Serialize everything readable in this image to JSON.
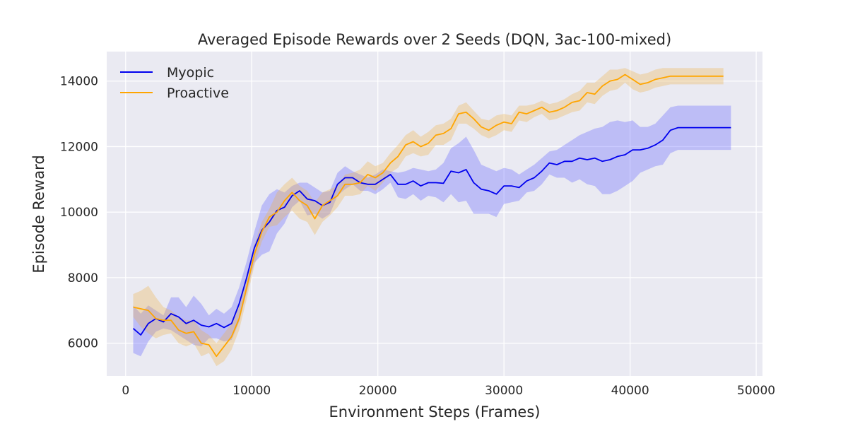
{
  "chart_data": {
    "type": "line",
    "title": "Averaged Episode Rewards over 2 Seeds (DQN, 3ac-100-mixed)",
    "xlabel": "Environment Steps (Frames)",
    "ylabel": "Episode Reward",
    "xlim": [
      -1500,
      50500
    ],
    "ylim": [
      5000,
      14900
    ],
    "xticks": [
      0,
      10000,
      20000,
      30000,
      40000,
      50000
    ],
    "yticks": [
      6000,
      8000,
      10000,
      12000,
      14000
    ],
    "grid": true,
    "legend_position": "top-left",
    "series": [
      {
        "name": "Myopic",
        "color": "#0000ee",
        "band_color": "#6b6bff",
        "x": [
          600,
          1200,
          1800,
          2400,
          3000,
          3600,
          4200,
          4800,
          5400,
          6000,
          6600,
          7200,
          7800,
          8400,
          9000,
          9600,
          10200,
          10800,
          11400,
          12000,
          12600,
          13200,
          13800,
          14400,
          15000,
          15600,
          16200,
          16800,
          17400,
          18000,
          18600,
          19200,
          19800,
          20400,
          21000,
          21600,
          22200,
          22800,
          23400,
          24000,
          24600,
          25200,
          25800,
          26400,
          27000,
          27600,
          28200,
          28800,
          29400,
          30000,
          30600,
          31200,
          31800,
          32400,
          33000,
          33600,
          34200,
          34800,
          35400,
          36000,
          36600,
          37200,
          37800,
          38400,
          39000,
          39600,
          40200,
          40800,
          41400,
          42000,
          42600,
          43200,
          43800,
          44400,
          45000,
          45600,
          46200,
          46800,
          47400,
          48000
        ],
        "y": [
          6450,
          6250,
          6600,
          6750,
          6650,
          6900,
          6800,
          6600,
          6700,
          6550,
          6500,
          6600,
          6480,
          6600,
          7200,
          8000,
          8900,
          9450,
          9700,
          10050,
          10150,
          10500,
          10650,
          10400,
          10350,
          10200,
          10300,
          10850,
          11050,
          11050,
          10900,
          10850,
          10850,
          11000,
          11150,
          10850,
          10850,
          10950,
          10800,
          10900,
          10900,
          10880,
          11250,
          11200,
          11300,
          10900,
          10700,
          10650,
          10550,
          10800,
          10800,
          10750,
          10950,
          11050,
          11250,
          11500,
          11450,
          11550,
          11550,
          11650,
          11600,
          11650,
          11550,
          11600,
          11700,
          11750,
          11900,
          11900,
          11950,
          12050,
          12200,
          12500,
          12580,
          12580,
          12580,
          12580,
          12580,
          12580,
          12580,
          12580
        ],
        "upper": [
          7150,
          6900,
          7150,
          7000,
          6850,
          7400,
          7400,
          7100,
          7450,
          7200,
          6850,
          7050,
          6900,
          7100,
          7700,
          8500,
          9400,
          10200,
          10550,
          10700,
          10600,
          10800,
          10900,
          10900,
          10750,
          10600,
          10650,
          11200,
          11400,
          11250,
          11150,
          11050,
          11150,
          11300,
          11250,
          11200,
          11250,
          11350,
          11300,
          11250,
          11300,
          11500,
          11950,
          12100,
          12300,
          11900,
          11450,
          11350,
          11250,
          11350,
          11300,
          11150,
          11300,
          11450,
          11650,
          11850,
          11900,
          12050,
          12200,
          12350,
          12450,
          12550,
          12600,
          12750,
          12800,
          12750,
          12800,
          12600,
          12600,
          12700,
          12950,
          13200,
          13250,
          13250,
          13250,
          13250,
          13250,
          13250,
          13250,
          13250
        ],
        "lower": [
          5700,
          5600,
          6050,
          6350,
          6450,
          6400,
          6250,
          6100,
          5950,
          5900,
          6150,
          6150,
          6050,
          6100,
          6650,
          7550,
          8450,
          8700,
          8800,
          9350,
          9650,
          10150,
          10350,
          9900,
          9950,
          9800,
          9950,
          10500,
          10700,
          10850,
          10650,
          10650,
          10550,
          10700,
          10900,
          10450,
          10400,
          10550,
          10350,
          10500,
          10450,
          10300,
          10550,
          10300,
          10350,
          9950,
          9950,
          9950,
          9850,
          10250,
          10300,
          10350,
          10600,
          10650,
          10850,
          11150,
          11050,
          11050,
          10900,
          11000,
          10850,
          10800,
          10550,
          10550,
          10650,
          10800,
          10950,
          11200,
          11300,
          11400,
          11450,
          11800,
          11900,
          11900,
          11900,
          11900,
          11900,
          11900,
          11900,
          11900
        ]
      },
      {
        "name": "Proactive",
        "color": "#ffa500",
        "band_color": "#f0b040",
        "x": [
          600,
          1200,
          1800,
          2400,
          3000,
          3600,
          4200,
          4800,
          5400,
          6000,
          6600,
          7200,
          7800,
          8400,
          9000,
          9600,
          10200,
          10800,
          11400,
          12000,
          12600,
          13200,
          13800,
          14400,
          15000,
          15600,
          16200,
          16800,
          17400,
          18000,
          18600,
          19200,
          19800,
          20400,
          21000,
          21600,
          22200,
          22800,
          23400,
          24000,
          24600,
          25200,
          25800,
          26400,
          27000,
          27600,
          28200,
          28800,
          29400,
          30000,
          30600,
          31200,
          31800,
          32400,
          33000,
          33600,
          34200,
          34800,
          35400,
          36000,
          36600,
          37200,
          37800,
          38400,
          39000,
          39600,
          40200,
          40800,
          41400,
          42000,
          42600,
          43200,
          43800,
          44400,
          45000,
          45600,
          46200,
          46800,
          47400
        ],
        "y": [
          7100,
          7050,
          7000,
          6750,
          6700,
          6700,
          6400,
          6300,
          6350,
          6000,
          5950,
          5600,
          5900,
          6200,
          6750,
          7700,
          8700,
          9400,
          9850,
          10000,
          10350,
          10600,
          10350,
          10200,
          9800,
          10200,
          10350,
          10500,
          10850,
          10850,
          10900,
          11150,
          11050,
          11200,
          11500,
          11700,
          12050,
          12150,
          12000,
          12100,
          12350,
          12400,
          12550,
          13000,
          13050,
          12850,
          12600,
          12500,
          12650,
          12750,
          12700,
          13050,
          13000,
          13100,
          13200,
          13050,
          13100,
          13200,
          13350,
          13400,
          13650,
          13600,
          13850,
          14000,
          14050,
          14200,
          14050,
          13900,
          13950,
          14050,
          14100,
          14150,
          14150,
          14150,
          14150,
          14150,
          14150,
          14150,
          14150
        ],
        "upper": [
          7500,
          7600,
          7750,
          7400,
          7100,
          7000,
          6800,
          6700,
          6700,
          6400,
          6250,
          6000,
          6300,
          6600,
          7200,
          8100,
          9000,
          9700,
          10100,
          10600,
          10850,
          11050,
          10800,
          10650,
          10300,
          10600,
          10700,
          10800,
          11150,
          11200,
          11300,
          11550,
          11400,
          11500,
          11800,
          12050,
          12350,
          12500,
          12300,
          12450,
          12650,
          12700,
          12850,
          13250,
          13350,
          13100,
          12850,
          12800,
          12950,
          13000,
          12950,
          13250,
          13250,
          13300,
          13400,
          13300,
          13350,
          13450,
          13600,
          13700,
          13950,
          13950,
          14150,
          14350,
          14350,
          14400,
          14300,
          14200,
          14250,
          14350,
          14400,
          14400,
          14400,
          14400,
          14400,
          14400,
          14400,
          14400,
          14400
        ],
        "lower": [
          6800,
          6500,
          6300,
          6150,
          6250,
          6300,
          6000,
          5900,
          6000,
          5600,
          5700,
          5300,
          5450,
          5800,
          6400,
          7350,
          8350,
          9100,
          9550,
          9600,
          9850,
          10050,
          9800,
          9700,
          9300,
          9700,
          9900,
          10150,
          10500,
          10500,
          10550,
          10800,
          10650,
          10900,
          11200,
          11350,
          11700,
          11800,
          11700,
          11750,
          12050,
          12050,
          12200,
          12700,
          12700,
          12550,
          12350,
          12250,
          12350,
          12500,
          12450,
          12800,
          12750,
          12900,
          13000,
          12800,
          12850,
          12950,
          13050,
          13100,
          13350,
          13300,
          13550,
          13700,
          13750,
          13950,
          13750,
          13650,
          13700,
          13800,
          13850,
          13900,
          13900,
          13900,
          13900,
          13900,
          13900,
          13900,
          13900
        ]
      }
    ]
  }
}
